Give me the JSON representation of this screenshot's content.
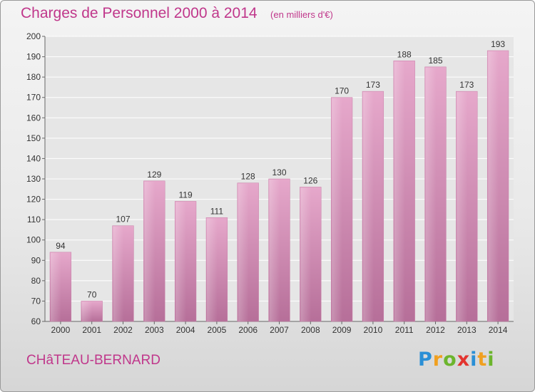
{
  "chart_data": {
    "type": "bar",
    "title": "Charges de Personnel 2000 à 2014",
    "subtitle": "(en milliers d'€)",
    "categories": [
      "2000",
      "2001",
      "2002",
      "2003",
      "2004",
      "2005",
      "2006",
      "2007",
      "2008",
      "2009",
      "2010",
      "2011",
      "2012",
      "2013",
      "2014"
    ],
    "values": [
      94,
      70,
      107,
      129,
      119,
      111,
      128,
      130,
      126,
      170,
      173,
      188,
      185,
      173,
      193
    ],
    "ylim": [
      60,
      200
    ],
    "yticks": [
      60,
      70,
      80,
      90,
      100,
      110,
      120,
      130,
      140,
      150,
      160,
      170,
      180,
      190,
      200
    ],
    "grid": true,
    "bar_color": "#d98ab5"
  },
  "footer": {
    "city": "CHâTEAU-BERNARD",
    "logo_letters": [
      "P",
      "r",
      "o",
      "x",
      "i",
      "t",
      "i"
    ],
    "logo_colors": [
      "#2a8fd6",
      "#f0a020",
      "#6cb52d",
      "#e3342f",
      "#2a8fd6",
      "#f0a020",
      "#6cb52d"
    ]
  }
}
